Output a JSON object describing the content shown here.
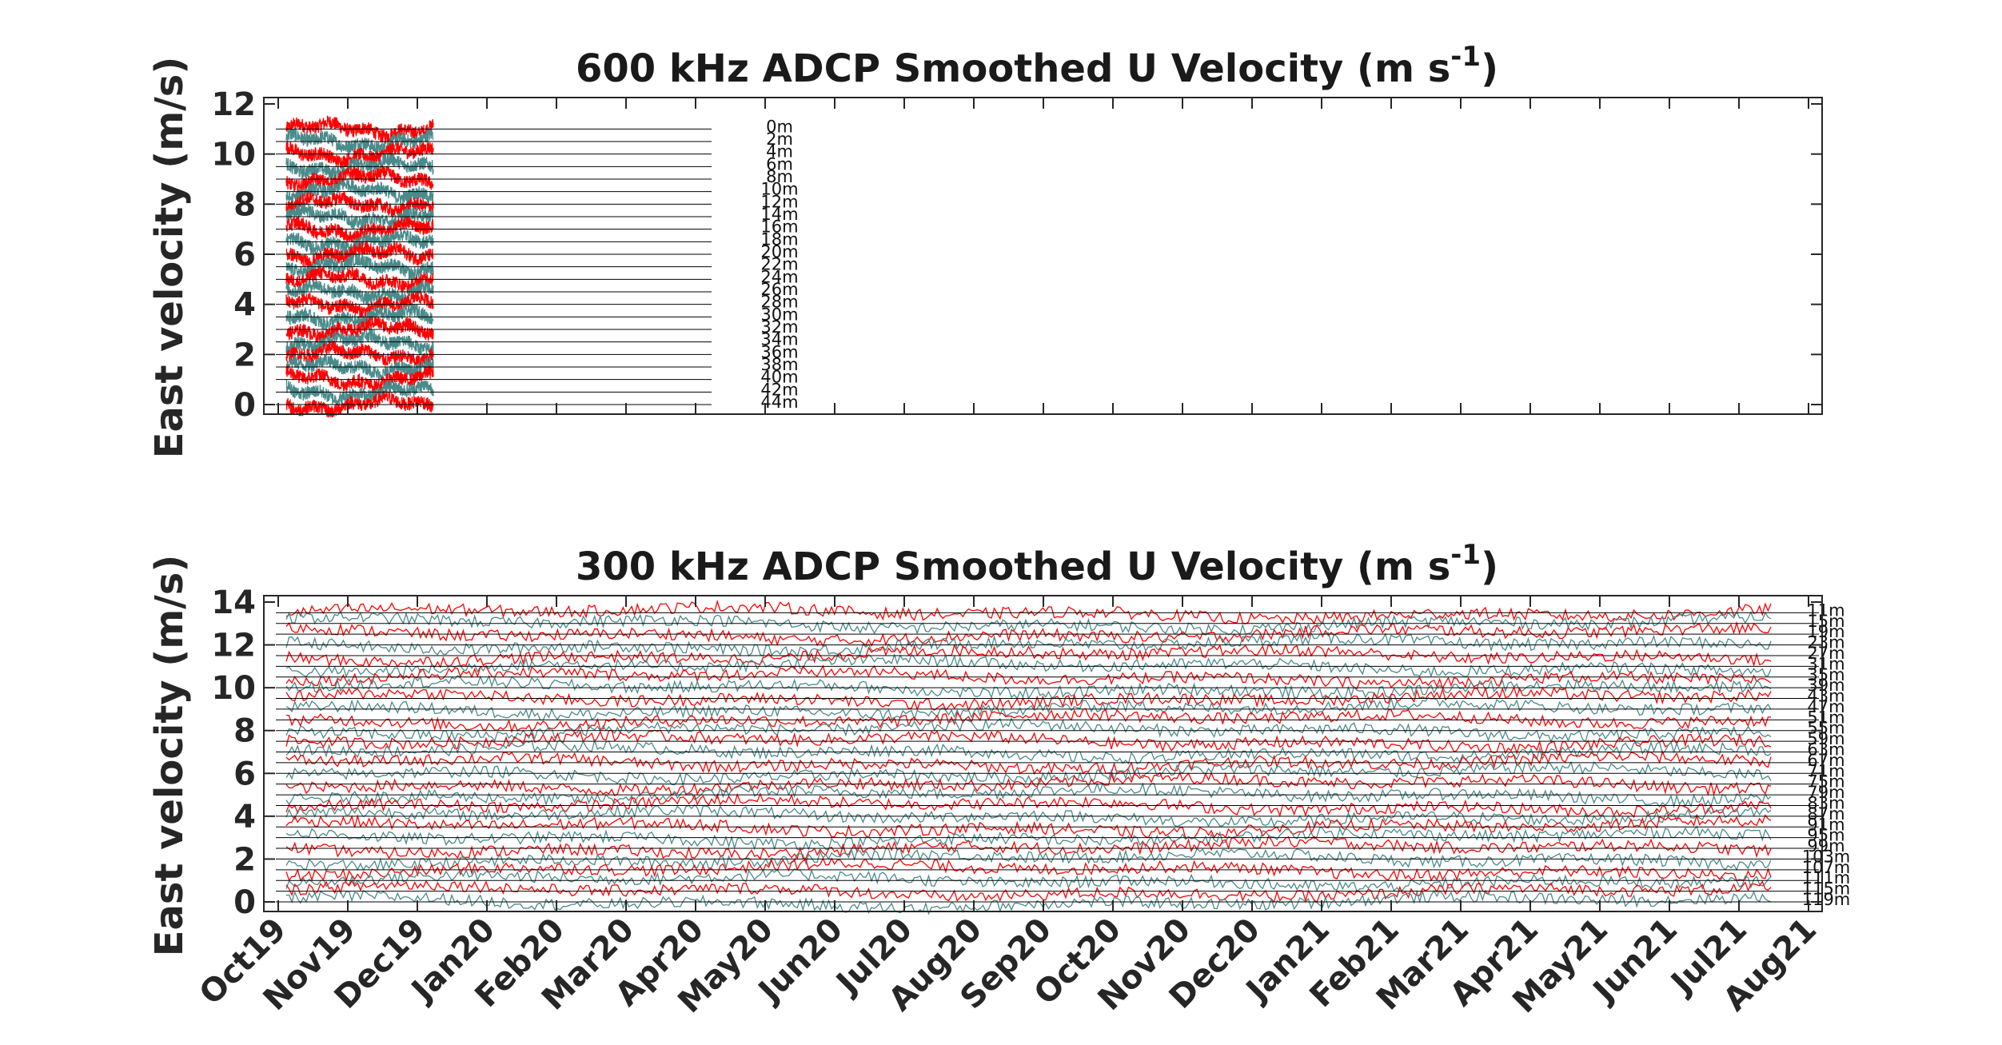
{
  "colors": {
    "upcast": "#ff0000",
    "downcast": "#4a8a8a",
    "reference_line": "#000000",
    "axis": "#262626"
  },
  "chart_data": [
    {
      "type": "line",
      "title": "600 kHz ADCP Smoothed U Velocity  (m s",
      "title_superscript": "-1",
      "title_suffix": ")",
      "ylabel": "East velocity (m/s)",
      "ylim": [
        0,
        12
      ],
      "yticks": [
        0,
        2,
        4,
        6,
        8,
        10,
        12
      ],
      "x_start_month": "Oct19",
      "x_end_month": "Aug21",
      "data_range": [
        "Oct19",
        "Dec19"
      ],
      "marker_date_month": "Apr20",
      "grid": false,
      "depth_labels": [
        "0m",
        "2m",
        "4m",
        "6m",
        "8m",
        "10m",
        "12m",
        "14m",
        "16m",
        "18m",
        "20m",
        "22m",
        "24m",
        "26m",
        "28m",
        "30m",
        "32m",
        "34m",
        "36m",
        "38m",
        "40m",
        "42m",
        "44m"
      ],
      "baseline_offsets": [
        11.0,
        10.5,
        10.0,
        9.5,
        9.0,
        8.5,
        8.0,
        7.5,
        7.0,
        6.5,
        6.0,
        5.5,
        5.0,
        4.5,
        4.0,
        3.5,
        3.0,
        2.5,
        2.0,
        1.5,
        1.0,
        0.5,
        0.0
      ],
      "line_spacing": 0.5
    },
    {
      "type": "line",
      "title": "300 kHz ADCP Smoothed U Velocity  (m s",
      "title_superscript": "-1",
      "title_suffix": ")",
      "ylabel": "East velocity (m/s)",
      "ylim": [
        0,
        14
      ],
      "yticks": [
        0,
        2,
        4,
        6,
        8,
        10,
        12,
        14
      ],
      "x_start_month": "Oct19",
      "x_end_month": "Aug21",
      "data_range": [
        "Oct19",
        "Jul21"
      ],
      "grid": false,
      "depth_labels": [
        "11m",
        "15m",
        "19m",
        "23m",
        "27m",
        "31m",
        "35m",
        "39m",
        "43m",
        "47m",
        "51m",
        "55m",
        "59m",
        "63m",
        "67m",
        "71m",
        "75m",
        "79m",
        "83m",
        "87m",
        "91m",
        "95m",
        "99m",
        "103m",
        "107m",
        "111m",
        "115m",
        "119m"
      ],
      "baseline_offsets": [
        13.5,
        13.0,
        12.5,
        12.0,
        11.5,
        11.0,
        10.5,
        10.0,
        9.5,
        9.0,
        8.5,
        8.0,
        7.5,
        7.0,
        6.5,
        6.0,
        5.5,
        5.0,
        4.5,
        4.0,
        3.5,
        3.0,
        2.5,
        2.0,
        1.5,
        1.0,
        0.5,
        0.0
      ],
      "line_spacing": 0.5
    }
  ],
  "x_tick_labels": [
    "Oct19",
    "Nov19",
    "Dec19",
    "Jan20",
    "Feb20",
    "Mar20",
    "Apr20",
    "May20",
    "Jun20",
    "Jul20",
    "Aug20",
    "Sep20",
    "Oct20",
    "Nov20",
    "Dec20",
    "Jan21",
    "Feb21",
    "Mar21",
    "Apr21",
    "May21",
    "Jun21",
    "Jul21",
    "Aug21"
  ]
}
